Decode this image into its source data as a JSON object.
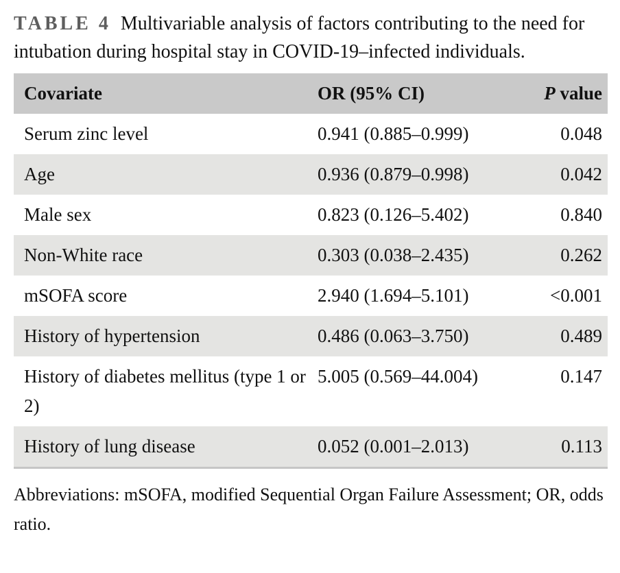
{
  "caption": {
    "label": "TABLE 4",
    "text": "Multivariable analysis of factors contributing to the need for intubation during hospital stay in COVID-19–infected individuals."
  },
  "table": {
    "header": {
      "covariate": "Covariate",
      "or_ci": "OR (95% CI)",
      "p_italic": "P",
      "p_rest": " value"
    },
    "rows": [
      {
        "covariate": "Serum zinc level",
        "or_ci": "0.941 (0.885–0.999)",
        "p": "0.048"
      },
      {
        "covariate": "Age",
        "or_ci": "0.936 (0.879–0.998)",
        "p": "0.042"
      },
      {
        "covariate": "Male sex",
        "or_ci": "0.823 (0.126–5.402)",
        "p": "0.840"
      },
      {
        "covariate": "Non-White race",
        "or_ci": "0.303 (0.038–2.435)",
        "p": "0.262"
      },
      {
        "covariate": "mSOFA score",
        "or_ci": "2.940 (1.694–5.101)",
        "p": "<0.001"
      },
      {
        "covariate": "History of hypertension",
        "or_ci": "0.486 (0.063–3.750)",
        "p": "0.489"
      },
      {
        "covariate": "History of diabetes mellitus (type 1 or 2)",
        "or_ci": "5.005 (0.569–44.004)",
        "p": "0.147"
      },
      {
        "covariate": "History of lung disease",
        "or_ci": "0.052 (0.001–2.013)",
        "p": "0.113"
      }
    ]
  },
  "footnote": "Abbreviations: mSOFA, modified Sequential Organ Failure Assessment; OR, odds ratio.",
  "colors": {
    "header_bg": "#c9c9c9",
    "stripe_bg": "#e4e4e2",
    "border_color": "#c6c6c6",
    "label_gray": "#5e5e5e",
    "text_color": "#111111"
  }
}
